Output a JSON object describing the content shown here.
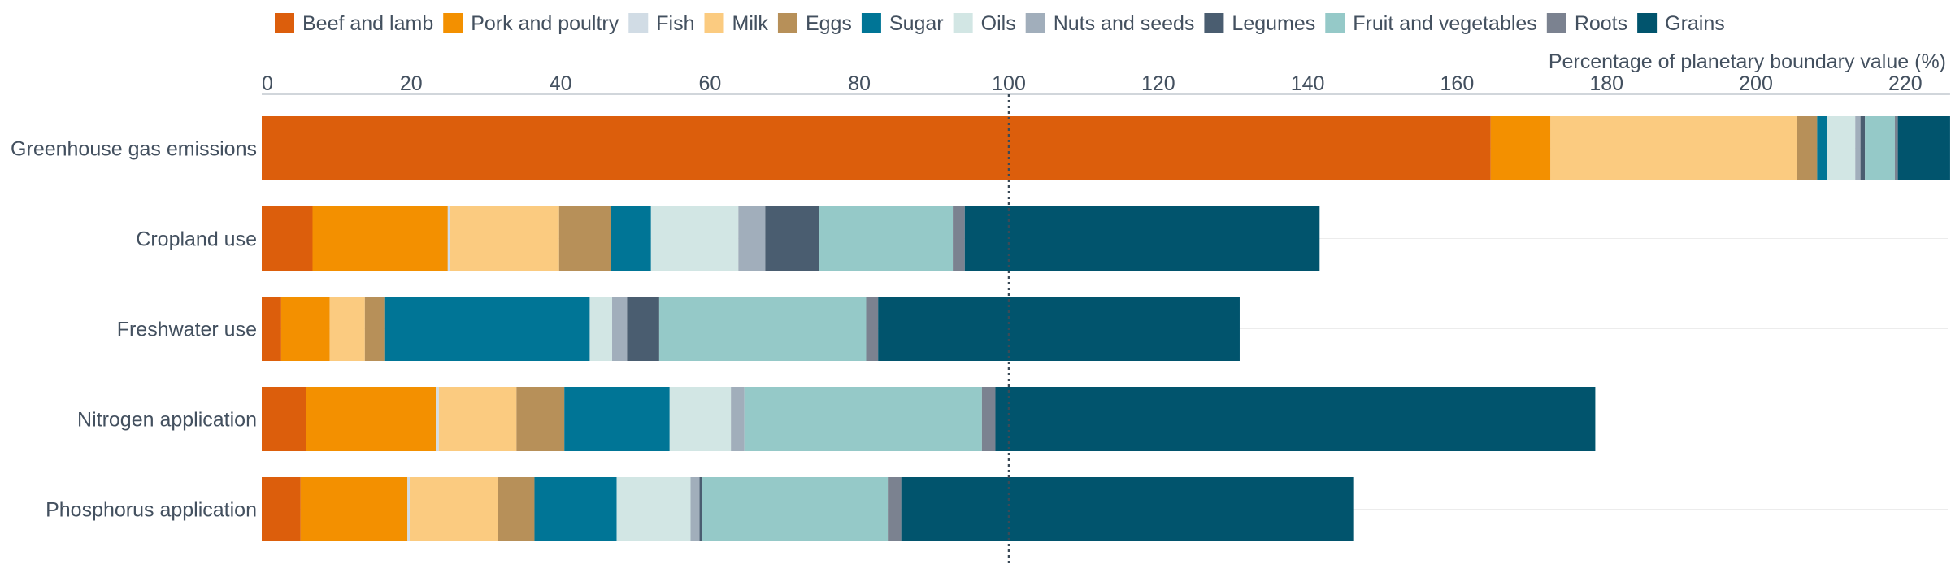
{
  "chart_data": {
    "type": "bar",
    "orientation": "horizontal",
    "stacked": true,
    "xlabel": "Percentage of planetary boundary value (%)",
    "xlim": [
      0,
      226
    ],
    "xticks": [
      0,
      20,
      40,
      60,
      80,
      100,
      120,
      140,
      160,
      180,
      200,
      220
    ],
    "reference_line": {
      "x": 100,
      "style": "dotted"
    },
    "legend_position": "top",
    "grid": "horizontal row guides only",
    "categories": [
      "Greenhouse gas emissions",
      "Cropland use",
      "Freshwater use",
      "Nitrogen application",
      "Phosphorus application"
    ],
    "series": [
      {
        "name": "Beef and lamb",
        "color": "#dc5e0c",
        "values": [
          164.5,
          6.8,
          2.6,
          5.9,
          5.2
        ]
      },
      {
        "name": "Pork and poultry",
        "color": "#f39000",
        "values": [
          8.0,
          18.1,
          6.5,
          17.4,
          14.3
        ]
      },
      {
        "name": "Fish",
        "color": "#d1dce5",
        "values": [
          0.0,
          0.3,
          0.0,
          0.4,
          0.3
        ]
      },
      {
        "name": "Milk",
        "color": "#fbcb80",
        "values": [
          33.0,
          14.6,
          4.7,
          10.4,
          11.8
        ]
      },
      {
        "name": "Eggs",
        "color": "#b79059",
        "values": [
          2.7,
          6.9,
          2.6,
          6.4,
          4.9
        ]
      },
      {
        "name": "Sugar",
        "color": "#007596",
        "values": [
          1.3,
          5.4,
          27.5,
          14.1,
          11.0
        ]
      },
      {
        "name": "Oils",
        "color": "#d2e6e4",
        "values": [
          3.8,
          11.7,
          3.0,
          8.2,
          9.9
        ]
      },
      {
        "name": "Nuts and seeds",
        "color": "#a1aebb",
        "values": [
          0.7,
          3.6,
          2.0,
          1.8,
          1.2
        ]
      },
      {
        "name": "Legumes",
        "color": "#4a5d70",
        "values": [
          0.6,
          7.2,
          4.3,
          0.0,
          0.3
        ]
      },
      {
        "name": "Fruit and vegetables",
        "color": "#95c9c8",
        "values": [
          4.0,
          17.9,
          27.7,
          31.8,
          24.9
        ]
      },
      {
        "name": "Roots",
        "color": "#7b8290",
        "values": [
          0.4,
          1.6,
          1.6,
          1.8,
          1.8
        ]
      },
      {
        "name": "Grains",
        "color": "#01546d",
        "values": [
          7.0,
          47.5,
          48.4,
          80.3,
          60.5
        ]
      }
    ]
  }
}
